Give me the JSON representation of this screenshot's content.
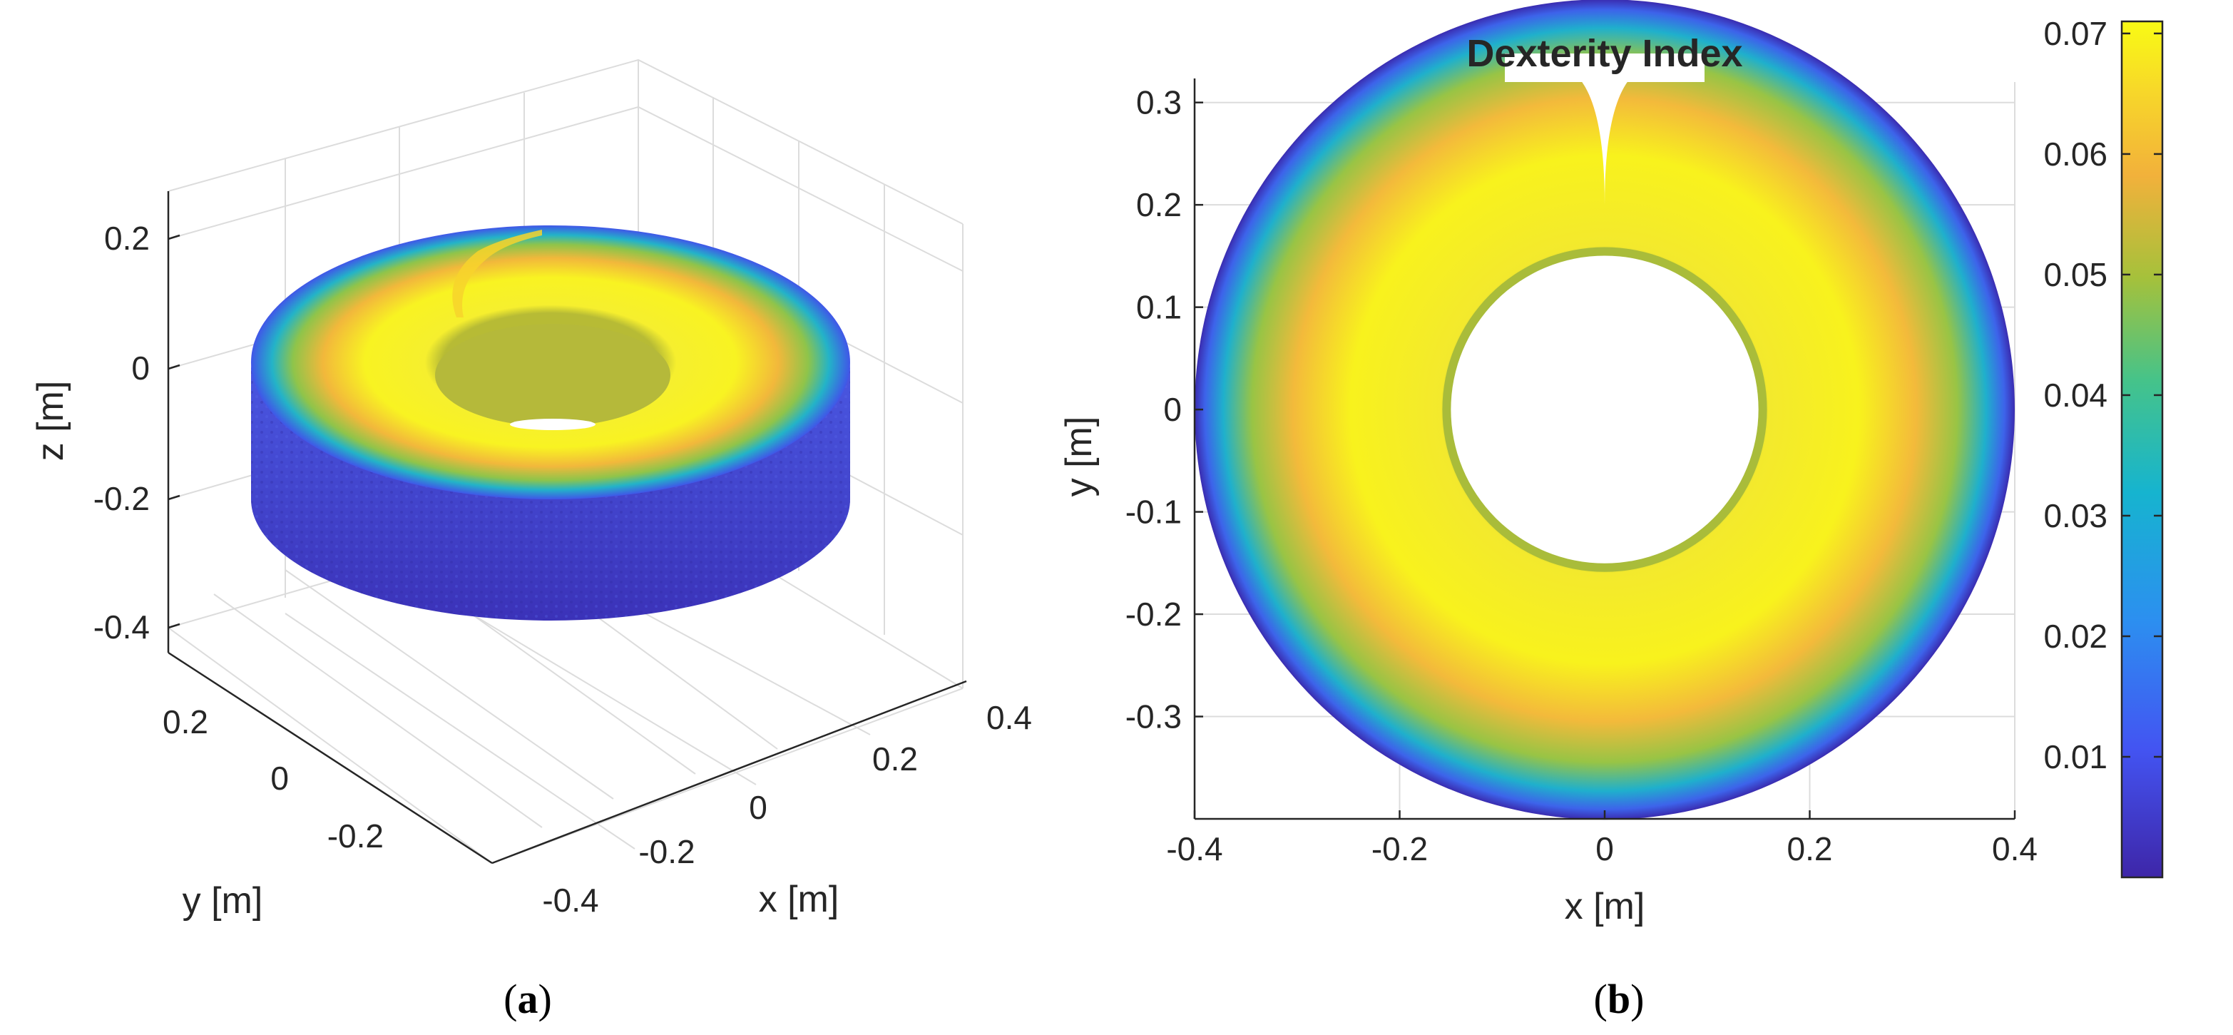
{
  "chart_data": [
    {
      "id": "a",
      "type": "scatter3d",
      "title": "",
      "xlabel": "x [m]",
      "ylabel": "y [m]",
      "zlabel": "z [m]",
      "x_ticks": [
        "-0.4",
        "-0.2",
        "0",
        "0.2",
        "0.4"
      ],
      "y_ticks": [
        "-0.2",
        "0",
        "0.2"
      ],
      "z_ticks": [
        "-0.4",
        "-0.2",
        "0",
        "0.2"
      ],
      "description_values": {
        "outer_radius": 0.4,
        "inner_radius": 0.15,
        "z_top": 0,
        "z_bottom": -0.2
      },
      "caption_label": "a"
    },
    {
      "id": "b",
      "type": "scatter",
      "title": "Dexterity Index",
      "xlabel": "x [m]",
      "ylabel": "y [m]",
      "x_ticks": [
        "-0.4",
        "-0.2",
        "0",
        "0.2",
        "0.4"
      ],
      "y_ticks": [
        "0.3",
        "0.2",
        "0.1",
        "0",
        "-0.1",
        "-0.2",
        "-0.3"
      ],
      "xlim": [
        -0.4,
        0.4
      ],
      "ylim": [
        -0.4,
        0.32
      ],
      "outer_radius": 0.4,
      "inner_radius": 0.15,
      "colorbar": {
        "min": 0.0,
        "max": 0.071,
        "ticks": [
          "0.07",
          "0.06",
          "0.05",
          "0.04",
          "0.03",
          "0.02",
          "0.01"
        ],
        "tick_values": [
          0.07,
          0.06,
          0.05,
          0.04,
          0.03,
          0.02,
          0.01
        ]
      },
      "caption_label": "b"
    }
  ]
}
